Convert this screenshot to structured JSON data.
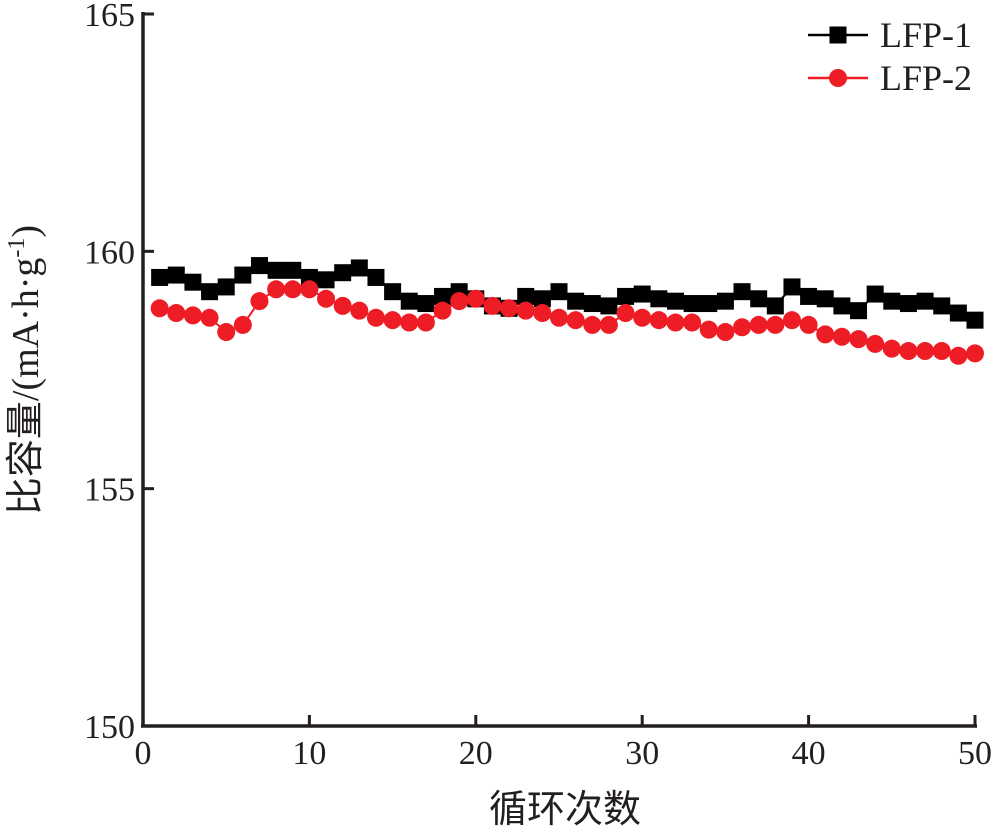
{
  "chart_data": {
    "type": "line",
    "xlabel": "循环次数",
    "ylabel_main": "比容量/(mA·h·g",
    "ylabel_sup": "-1",
    "ylabel_close": ")",
    "xlim": [
      0,
      50
    ],
    "ylim": [
      150,
      165
    ],
    "xticks": [
      0,
      10,
      20,
      30,
      40,
      50
    ],
    "yticks": [
      150,
      155,
      160,
      165
    ],
    "legend_position": "top-right",
    "grid": false,
    "series": [
      {
        "name": "LFP-1",
        "color": "#000000",
        "marker": "square",
        "x": [
          1,
          2,
          3,
          4,
          5,
          6,
          7,
          8,
          9,
          10,
          11,
          12,
          13,
          14,
          15,
          16,
          17,
          18,
          19,
          20,
          21,
          22,
          23,
          24,
          25,
          26,
          27,
          28,
          29,
          30,
          31,
          32,
          33,
          34,
          35,
          36,
          37,
          38,
          39,
          40,
          41,
          42,
          43,
          44,
          45,
          46,
          47,
          48,
          49,
          50
        ],
        "values": [
          159.45,
          159.5,
          159.35,
          159.15,
          159.25,
          159.5,
          159.7,
          159.6,
          159.6,
          159.45,
          159.4,
          159.55,
          159.65,
          159.45,
          159.15,
          158.95,
          158.9,
          159.05,
          159.15,
          159.0,
          158.85,
          158.8,
          159.05,
          159.0,
          159.15,
          158.95,
          158.9,
          158.85,
          159.05,
          159.1,
          159.0,
          158.95,
          158.9,
          158.9,
          158.95,
          159.15,
          159.0,
          158.85,
          159.25,
          159.05,
          159.0,
          158.85,
          158.75,
          159.1,
          158.95,
          158.9,
          158.95,
          158.85,
          158.7,
          158.55
        ]
      },
      {
        "name": "LFP-2",
        "color": "#ee1c25",
        "marker": "circle",
        "x": [
          1,
          2,
          3,
          4,
          5,
          6,
          7,
          8,
          9,
          10,
          11,
          12,
          13,
          14,
          15,
          16,
          17,
          18,
          19,
          20,
          21,
          22,
          23,
          24,
          25,
          26,
          27,
          28,
          29,
          30,
          31,
          32,
          33,
          34,
          35,
          36,
          37,
          38,
          39,
          40,
          41,
          42,
          43,
          44,
          45,
          46,
          47,
          48,
          49,
          50
        ],
        "values": [
          158.8,
          158.7,
          158.65,
          158.6,
          158.3,
          158.45,
          158.95,
          159.2,
          159.2,
          159.2,
          159.0,
          158.85,
          158.75,
          158.6,
          158.55,
          158.5,
          158.5,
          158.75,
          158.95,
          159.0,
          158.85,
          158.8,
          158.75,
          158.7,
          158.6,
          158.55,
          158.45,
          158.45,
          158.7,
          158.6,
          158.55,
          158.5,
          158.5,
          158.35,
          158.3,
          158.4,
          158.45,
          158.45,
          158.55,
          158.45,
          158.25,
          158.2,
          158.15,
          158.05,
          157.95,
          157.9,
          157.9,
          157.9,
          157.8,
          157.85
        ]
      }
    ]
  }
}
